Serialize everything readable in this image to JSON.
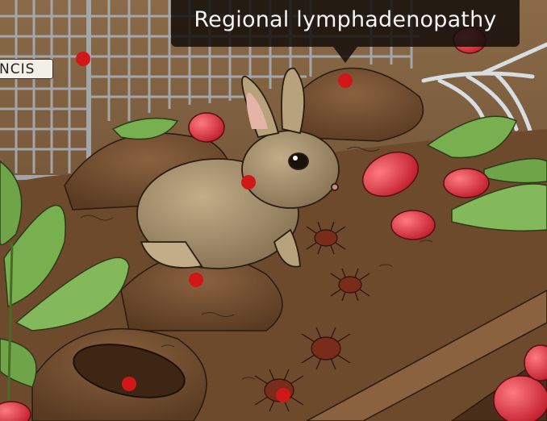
{
  "tooltip": {
    "text": "Regional lymphadenopathy"
  },
  "sign": {
    "text": "NCIS"
  },
  "colors": {
    "hotspot": "#d01818",
    "soil": "#7a5433",
    "soil_dark": "#4e321c",
    "grid": "#9aa0a6",
    "leaf": "#6fa548",
    "radish": "#d6303c",
    "rabbit": "#a99572",
    "tick": "#7a2c1a"
  },
  "hotspots": [
    {
      "label": "hotspot-1"
    },
    {
      "label": "hotspot-2"
    },
    {
      "label": "hotspot-3"
    },
    {
      "label": "hotspot-4"
    },
    {
      "label": "hotspot-5"
    },
    {
      "label": "hotspot-6"
    },
    {
      "label": "hotspot-7"
    }
  ]
}
